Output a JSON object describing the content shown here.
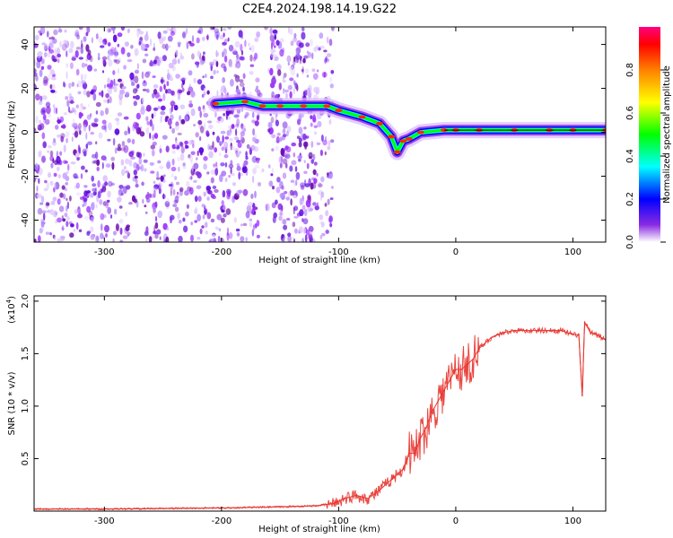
{
  "title": "C2E4.2024.198.14.19.G22",
  "chart_data": [
    {
      "type": "heatmap",
      "xlabel": "Height of straight line (km)",
      "ylabel": "Frequency (Hz)",
      "xlim": [
        -360,
        128
      ],
      "ylim": [
        -50,
        48
      ],
      "xticks": [
        -300,
        -200,
        -100,
        0,
        100
      ],
      "yticks": [
        -40,
        -20,
        0,
        20,
        40
      ],
      "colorbar": {
        "label": "Normalized spectral amplitude",
        "range": [
          0,
          1
        ],
        "ticks": [
          "0.0",
          "0.2",
          "0.4",
          "0.6",
          "0.8"
        ],
        "tick_values": [
          0,
          0.2,
          0.4,
          0.6,
          0.8
        ],
        "colors": [
          "#ffffff",
          "#8a2be2",
          "#0000ff",
          "#00ffff",
          "#00ff00",
          "#ffff00",
          "#ff8000",
          "#ff0000",
          "#ff0080"
        ]
      },
      "noise_region_x": [
        -360,
        -105
      ],
      "signal_trace": {
        "x": [
          -205,
          -180,
          -165,
          -150,
          -130,
          -110,
          -100,
          -80,
          -65,
          -55,
          -50,
          -45,
          -40,
          -30,
          -10,
          0,
          20,
          50,
          80,
          100,
          128
        ],
        "y": [
          13,
          14,
          12,
          12,
          12,
          12,
          10,
          7,
          4,
          -2,
          -9,
          -4,
          -3,
          0,
          1,
          1,
          1,
          1,
          1,
          1,
          1
        ]
      }
    },
    {
      "type": "line",
      "xlabel": "Height of straight line (km)",
      "ylabel": "SNR (10 * v/v)",
      "exponent_label": "(x10",
      "exponent_power": "4",
      "exponent_close": ")",
      "xlim": [
        -360,
        128
      ],
      "ylim": [
        0,
        2.05
      ],
      "xticks": [
        -300,
        -200,
        -100,
        0,
        100
      ],
      "yticks": [
        "0.5",
        "1.0",
        "1.5",
        "2.0"
      ],
      "ytick_values": [
        0.5,
        1.0,
        1.5,
        2.0
      ],
      "series": [
        {
          "color": "#e8332e",
          "x": [
            -360,
            -300,
            -250,
            -200,
            -150,
            -120,
            -105,
            -95,
            -85,
            -75,
            -65,
            -55,
            -45,
            -40,
            -35,
            -30,
            -25,
            -20,
            -15,
            -10,
            -5,
            0,
            5,
            10,
            15,
            20,
            30,
            40,
            50,
            60,
            70,
            80,
            90,
            100,
            105,
            108,
            110,
            115,
            120,
            128
          ],
          "y": [
            0.02,
            0.02,
            0.025,
            0.03,
            0.04,
            0.05,
            0.07,
            0.12,
            0.15,
            0.12,
            0.2,
            0.3,
            0.4,
            0.55,
            0.55,
            0.7,
            0.8,
            0.95,
            1.05,
            1.15,
            1.25,
            1.35,
            1.35,
            1.4,
            1.45,
            1.55,
            1.65,
            1.7,
            1.72,
            1.72,
            1.72,
            1.72,
            1.72,
            1.68,
            1.68,
            1.1,
            1.8,
            1.7,
            1.68,
            1.63
          ]
        }
      ]
    }
  ]
}
